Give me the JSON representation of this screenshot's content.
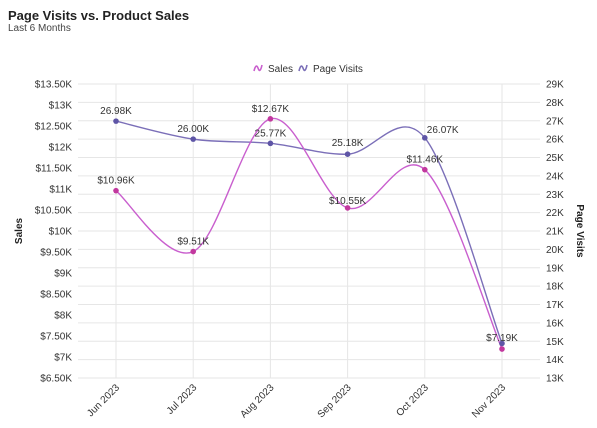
{
  "header": {
    "title": "Page Visits vs. Product Sales",
    "subtitle": "Last 6 Months"
  },
  "colors": {
    "sales": "#c95fce",
    "sales_point": "#c2389e",
    "visits": "#7b6fb8",
    "visits_point": "#5e55a6"
  },
  "chart_data": {
    "type": "line",
    "title": "Page Visits vs. Product Sales",
    "subtitle": "Last 6 Months",
    "categories": [
      "Jun 2023",
      "Jul 2023",
      "Aug 2023",
      "Sep 2023",
      "Oct 2023",
      "Nov 2023"
    ],
    "series": [
      {
        "name": "Sales",
        "axis": "left",
        "values": [
          10960,
          9510,
          12670,
          10550,
          11460,
          7190
        ],
        "labels": [
          "$10.96K",
          "$9.51K",
          "$12.67K",
          "$10.55K",
          "$11.46K",
          "$7.19K"
        ]
      },
      {
        "name": "Page Visits",
        "axis": "right",
        "values": [
          26980,
          26000,
          25770,
          25180,
          26070,
          14880
        ],
        "labels": [
          "26.98K",
          "26.00K",
          "25.77K",
          "25.18K",
          "26.07K",
          ""
        ]
      }
    ],
    "left_axis": {
      "label": "Sales",
      "ylim": [
        6500,
        13500
      ],
      "ticks": [
        6500,
        7000,
        7500,
        8000,
        8500,
        9000,
        9500,
        10000,
        10500,
        11000,
        11500,
        12000,
        12500,
        13000,
        13500
      ],
      "tick_labels": [
        "$6.50K",
        "$7K",
        "$7.50K",
        "$8K",
        "$8.50K",
        "$9K",
        "$9.50K",
        "$10K",
        "$10.50K",
        "$11K",
        "$11.50K",
        "$12K",
        "$12.50K",
        "$13K",
        "$13.50K"
      ]
    },
    "right_axis": {
      "label": "Page Visits",
      "ylim": [
        13000,
        29000
      ],
      "ticks": [
        13000,
        14000,
        15000,
        16000,
        17000,
        18000,
        19000,
        20000,
        21000,
        22000,
        23000,
        24000,
        25000,
        26000,
        27000,
        28000,
        29000
      ],
      "tick_labels": [
        "13K",
        "14K",
        "15K",
        "16K",
        "17K",
        "18K",
        "19K",
        "20K",
        "21K",
        "22K",
        "23K",
        "24K",
        "25K",
        "26K",
        "27K",
        "28K",
        "29K"
      ]
    },
    "legend": {
      "position": "top-center",
      "entries": [
        "Sales",
        "Page Visits"
      ]
    },
    "grid": true,
    "smooth": true
  }
}
